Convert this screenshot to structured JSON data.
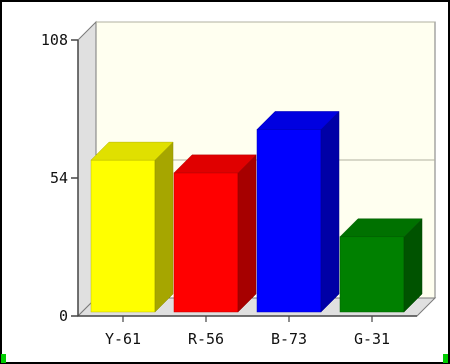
{
  "chart_data": {
    "type": "bar",
    "categories": [
      "Y-61",
      "R-56",
      "B-73",
      "G-31"
    ],
    "values": [
      61,
      56,
      73,
      31
    ],
    "colors": [
      "#ffff00",
      "#ff0000",
      "#0000ff",
      "#008000"
    ],
    "ylim": [
      0,
      108
    ],
    "yticks": [
      0,
      54,
      108
    ],
    "ytick_labels": [
      "0",
      "54",
      "108"
    ],
    "grid": "horizontal",
    "style": "3d",
    "title": "",
    "xlabel": "",
    "ylabel": ""
  }
}
